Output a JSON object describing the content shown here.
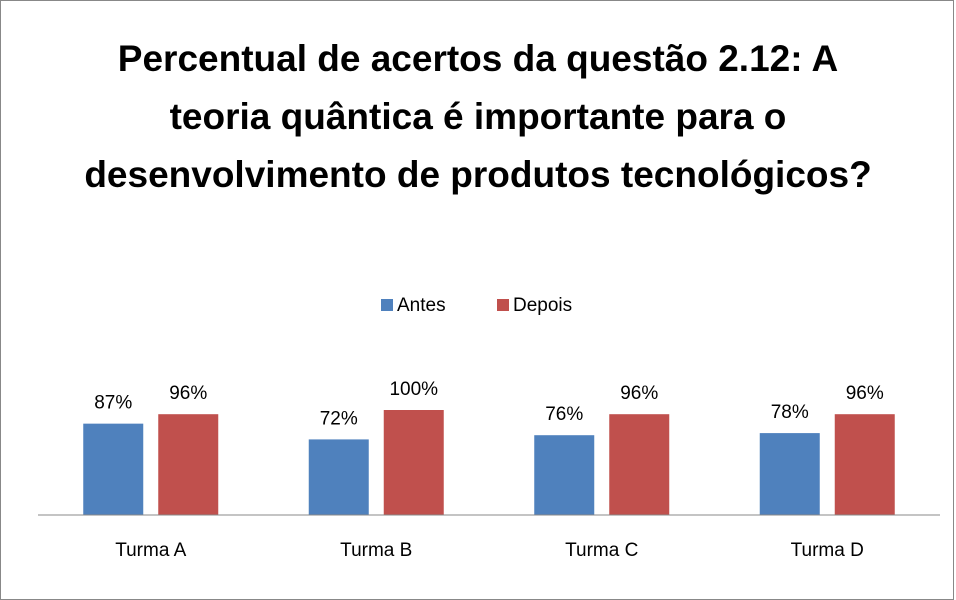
{
  "chart_data": {
    "type": "bar",
    "title": "Percentual de acertos da questão 2.12:  A teoria quântica é importante para o desenvolvimento de produtos tecnológicos?",
    "categories": [
      "Turma A",
      "Turma B",
      "Turma C",
      "Turma D"
    ],
    "series": [
      {
        "name": "Antes",
        "color": "#4f81bd",
        "values": [
          87,
          72,
          76,
          78
        ],
        "value_labels": [
          "87%",
          "72%",
          "76%",
          "78%"
        ]
      },
      {
        "name": "Depois",
        "color": "#c0504d",
        "values": [
          96,
          100,
          96,
          96
        ],
        "value_labels": [
          "96%",
          "100%",
          "96%",
          "96%"
        ]
      }
    ],
    "ylim": [
      0,
      100
    ],
    "legend": "top"
  }
}
